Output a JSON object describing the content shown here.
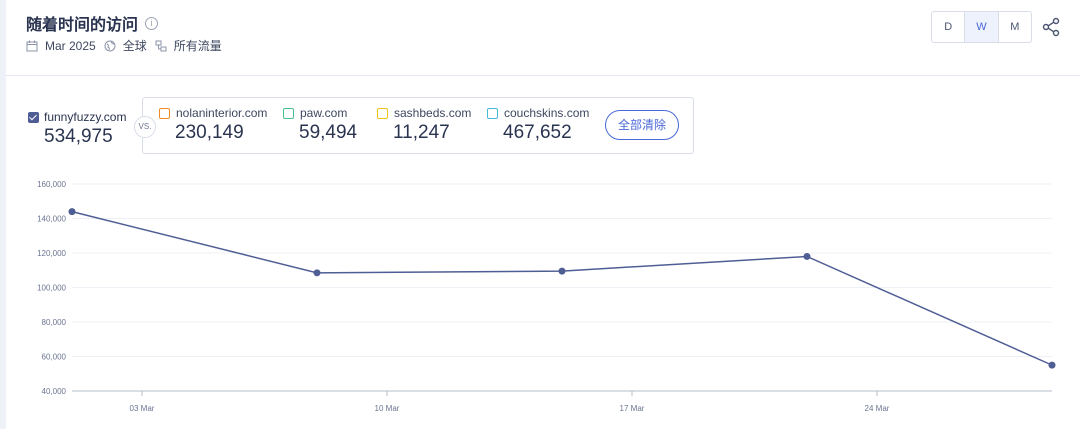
{
  "header": {
    "title": "随着时间的访问",
    "info": "i",
    "date": "Mar 2025",
    "region": "全球",
    "traffic": "所有流量"
  },
  "period": {
    "options": [
      "D",
      "W",
      "M"
    ],
    "selected": "W"
  },
  "primary": {
    "domain": "funnyfuzzy.com",
    "value": "534,975",
    "color": "#4f5d95"
  },
  "vs_label": "VS.",
  "competitors": [
    {
      "domain": "nolaninterior.com",
      "value": "230,149",
      "color": "#f08a24"
    },
    {
      "domain": "paw.com",
      "value": "59,494",
      "color": "#4cbf8c"
    },
    {
      "domain": "sashbeds.com",
      "value": "11,247",
      "color": "#f2c21b"
    },
    {
      "domain": "couchskins.com",
      "value": "467,652",
      "color": "#46b8d8"
    }
  ],
  "clear_all": "全部清除",
  "chart_data": {
    "type": "line",
    "ylim": [
      40000,
      160000
    ],
    "yticks": [
      "40,000",
      "60,000",
      "80,000",
      "100,000",
      "120,000",
      "140,000",
      "160,000"
    ],
    "ytick_values": [
      40000,
      60000,
      80000,
      100000,
      120000,
      140000,
      160000
    ],
    "xticks": [
      "03 Mar",
      "10 Mar",
      "17 Mar",
      "24 Mar"
    ],
    "x_dates": [
      "2025-03-01",
      "2025-03-08",
      "2025-03-15",
      "2025-03-22",
      "2025-03-29"
    ],
    "x_tick_dates": [
      "2025-03-03",
      "2025-03-10",
      "2025-03-17",
      "2025-03-24"
    ],
    "x_domain": [
      "2025-03-01",
      "2025-03-29"
    ],
    "series": [
      {
        "values": [
          144000,
          108500,
          109500,
          118000,
          55000
        ],
        "color": "#4f5d95"
      }
    ]
  }
}
